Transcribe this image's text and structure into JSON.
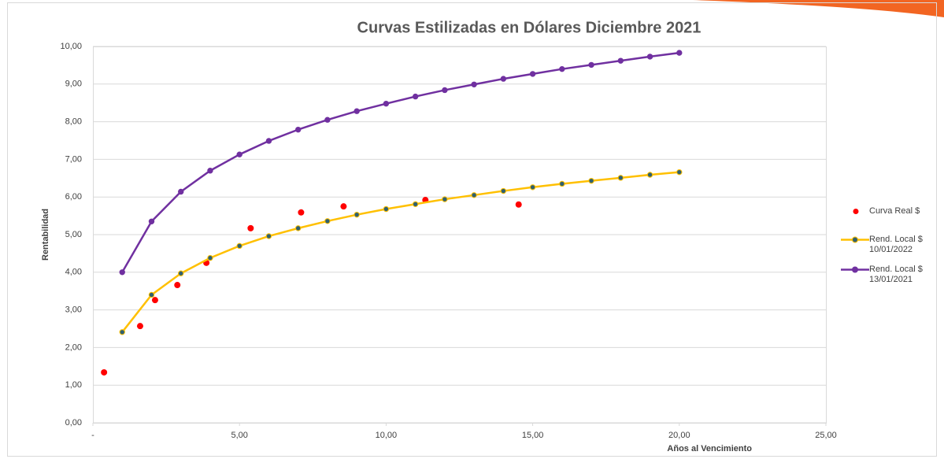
{
  "chart_data": {
    "type": "line",
    "title": "Curvas Estilizadas en Dólares Diciembre 2021",
    "x_label": "Años al Vencimiento",
    "y_label": "Rentabilidad",
    "xlim": [
      0,
      25
    ],
    "ylim": [
      0,
      10
    ],
    "xticks": [
      {
        "value": 0,
        "label": "-"
      },
      {
        "value": 5,
        "label": "5,00"
      },
      {
        "value": 10,
        "label": "10,00"
      },
      {
        "value": 15,
        "label": "15,00"
      },
      {
        "value": 20,
        "label": "20,00"
      },
      {
        "value": 25,
        "label": "25,00"
      }
    ],
    "yticks": [
      {
        "value": 0,
        "label": "0,00"
      },
      {
        "value": 1,
        "label": "1,00"
      },
      {
        "value": 2,
        "label": "2,00"
      },
      {
        "value": 3,
        "label": "3,00"
      },
      {
        "value": 4,
        "label": "4,00"
      },
      {
        "value": 5,
        "label": "5,00"
      },
      {
        "value": 6,
        "label": "6,00"
      },
      {
        "value": 7,
        "label": "7,00"
      },
      {
        "value": 8,
        "label": "8,00"
      },
      {
        "value": 9,
        "label": "9,00"
      },
      {
        "value": 10,
        "label": "10,00"
      }
    ],
    "grid": true,
    "legend": "right",
    "series": [
      {
        "name": "Curva Real $",
        "type": "scatter",
        "color": "#ff0000",
        "x": [
          0.38,
          1.61,
          2.12,
          2.88,
          3.87,
          5.38,
          7.1,
          8.55,
          11.34,
          14.52
        ],
        "values": [
          1.34,
          2.57,
          3.26,
          3.66,
          4.25,
          5.17,
          5.59,
          5.75,
          5.92,
          5.8
        ]
      },
      {
        "name": "Rend. Local $ 10/01/2022",
        "type": "line",
        "color": "#ffc000",
        "marker_color": "#2f6070",
        "x": [
          1,
          2,
          3,
          4,
          5,
          6,
          7,
          8,
          9,
          10,
          11,
          12,
          13,
          14,
          15,
          16,
          17,
          18,
          19,
          20
        ],
        "values": [
          2.41,
          3.4,
          3.97,
          4.38,
          4.7,
          4.96,
          5.17,
          5.36,
          5.53,
          5.68,
          5.81,
          5.94,
          6.05,
          6.16,
          6.26,
          6.35,
          6.43,
          6.51,
          6.59,
          6.66
        ]
      },
      {
        "name": "Rend. Local $ 13/01/2021",
        "type": "line",
        "color": "#7030a0",
        "marker_color": "#7030a0",
        "x": [
          1,
          2,
          3,
          4,
          5,
          6,
          7,
          8,
          9,
          10,
          11,
          12,
          13,
          14,
          15,
          16,
          17,
          18,
          19,
          20
        ],
        "values": [
          4.0,
          5.35,
          6.14,
          6.7,
          7.13,
          7.49,
          7.79,
          8.05,
          8.28,
          8.48,
          8.67,
          8.84,
          8.99,
          9.14,
          9.27,
          9.4,
          9.51,
          9.62,
          9.73,
          9.83
        ]
      }
    ]
  }
}
